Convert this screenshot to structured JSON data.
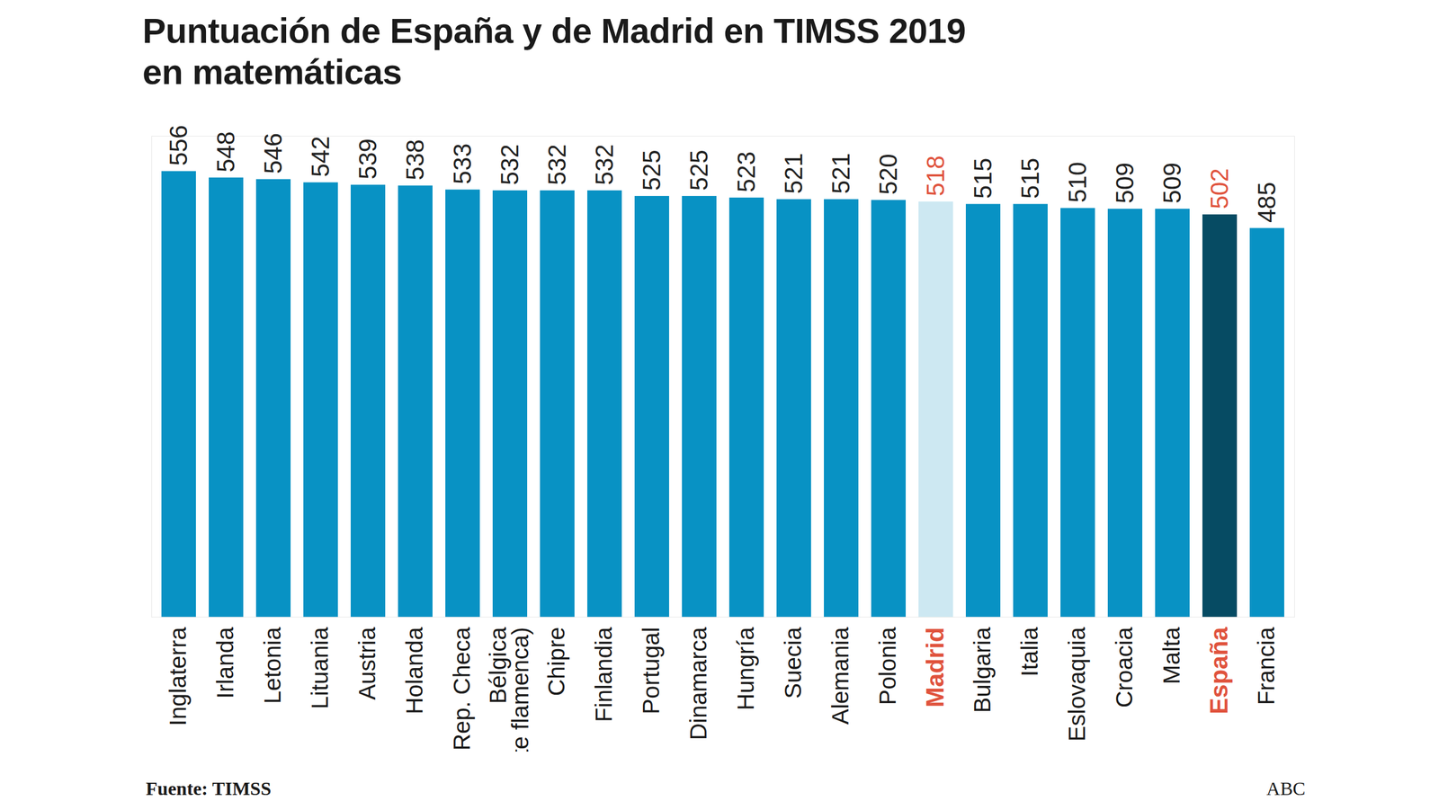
{
  "chart_data": {
    "type": "bar",
    "title": "Puntuación de España y de Madrid en TIMSS 2019\nen matemáticas",
    "categories": [
      "Inglaterra",
      "Irlanda",
      "Letonia",
      "Lituania",
      "Austria",
      "Holanda",
      "Rep. Checa",
      "Bélgica\n(parte flamenca)",
      "Chipre",
      "Finlandia",
      "Portugal",
      "Dinamarca",
      "Hungría",
      "Suecia",
      "Alemania",
      "Polonia",
      "Madrid",
      "Bulgaria",
      "Italia",
      "Eslovaquia",
      "Croacia",
      "Malta",
      "España",
      "Francia"
    ],
    "values": [
      556,
      548,
      546,
      542,
      539,
      538,
      533,
      532,
      532,
      532,
      525,
      525,
      523,
      521,
      521,
      520,
      518,
      515,
      515,
      510,
      509,
      509,
      502,
      485
    ],
    "colors": [
      "#0892c4",
      "#0892c4",
      "#0892c4",
      "#0892c4",
      "#0892c4",
      "#0892c4",
      "#0892c4",
      "#0892c4",
      "#0892c4",
      "#0892c4",
      "#0892c4",
      "#0892c4",
      "#0892c4",
      "#0892c4",
      "#0892c4",
      "#0892c4",
      "#cde8f2",
      "#0892c4",
      "#0892c4",
      "#0892c4",
      "#0892c4",
      "#0892c4",
      "#064b63",
      "#0892c4"
    ],
    "ylim": [
      0,
      600
    ],
    "yticks": [],
    "tick_labels": "x",
    "data_labels": true,
    "grid": false,
    "source": "Fuente: TIMSS",
    "credit": "ABC"
  }
}
